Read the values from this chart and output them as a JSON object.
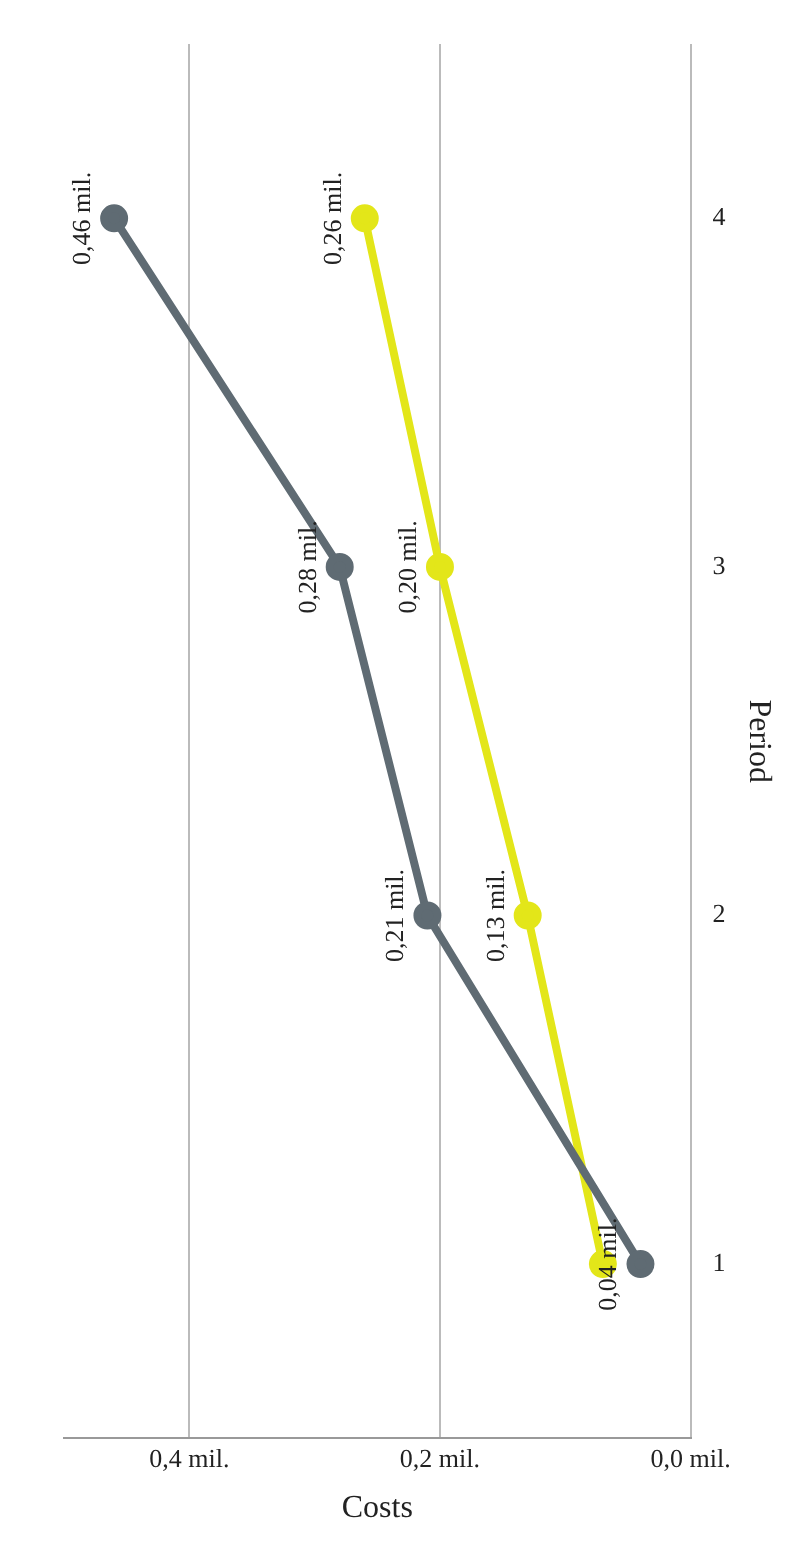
{
  "chart_data": {
    "type": "line",
    "orientation": "horizontal",
    "xlabel": "Costs",
    "ylabel": "Period",
    "categories": [
      "4",
      "3",
      "2",
      "1"
    ],
    "series": [
      {
        "color": "#5f6b73",
        "values": [
          0.46,
          0.28,
          0.21,
          0.04
        ],
        "value_labels": [
          "0,46 mil.",
          "0,28 mil.",
          "0,21 mil.",
          "0,04 mil."
        ]
      },
      {
        "color": "#e3e619",
        "values": [
          0.26,
          0.2,
          0.13,
          0.07
        ],
        "value_labels": [
          "0,26 mil.",
          "0,20 mil.",
          "0,13 mil.",
          null
        ]
      }
    ],
    "xticks": [
      {
        "value": 0,
        "label": "0,0 mil."
      },
      {
        "value": 0.2,
        "label": "0,2 mil."
      },
      {
        "value": 0.4,
        "label": "0,4 mil."
      }
    ],
    "xlim": [
      0.5,
      0
    ],
    "grid": "x",
    "marker": "circle",
    "line_style": "solid",
    "legend": false
  }
}
